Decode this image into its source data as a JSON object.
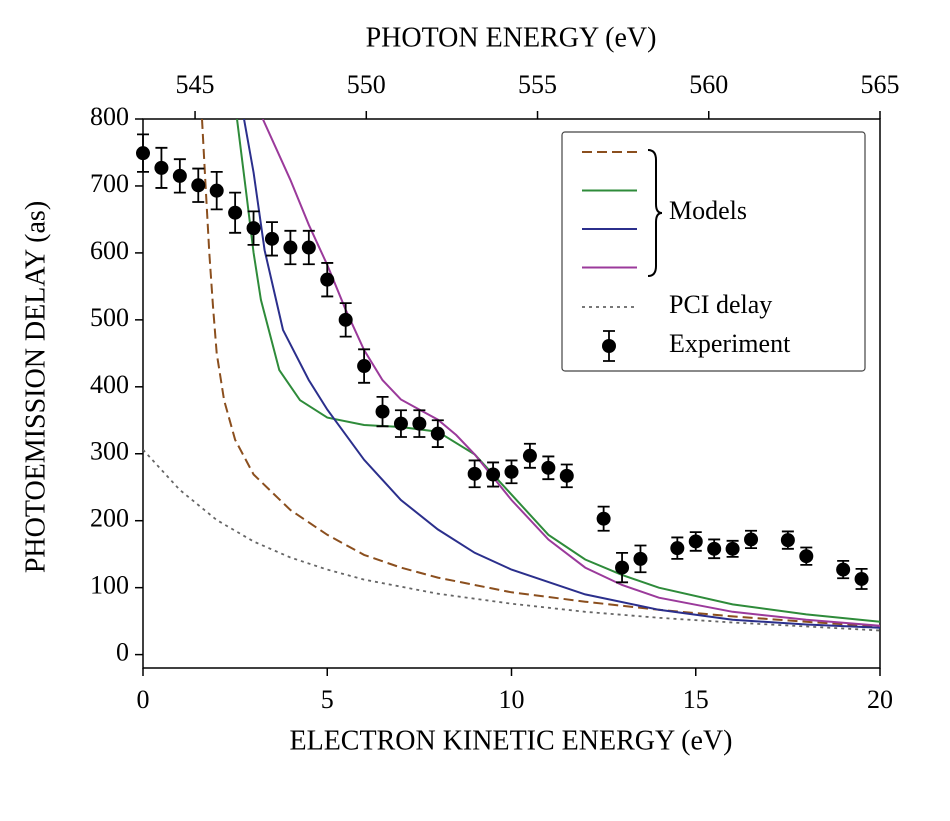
{
  "chart_data": {
    "type": "line",
    "xlabel": "ELECTRON KINETIC ENERGY (eV)",
    "ylabel": "PHOTOEMISSION DELAY (as)",
    "x2label": "PHOTON ENERGY (eV)",
    "xlim": [
      0,
      20
    ],
    "xticks": [
      0,
      5,
      10,
      15,
      20
    ],
    "ylim": [
      -20,
      800
    ],
    "yticks": [
      0,
      100,
      200,
      300,
      400,
      500,
      600,
      700,
      800
    ],
    "x2lim": [
      543.48,
      565
    ],
    "x2ticks": [
      545,
      550,
      555,
      560,
      565
    ],
    "legend": "upper right",
    "legend_group_label": "Models",
    "series": [
      {
        "color": "#8b4f1e",
        "dash": "dashed",
        "x": [
          1.6,
          1.7,
          1.8,
          1.9,
          2.0,
          2.2,
          2.5,
          3,
          4,
          5,
          6,
          7,
          8,
          10,
          12,
          14,
          16,
          18,
          20
        ],
        "values": [
          800,
          700,
          600,
          520,
          450,
          380,
          321,
          269,
          216,
          179,
          149,
          130,
          115,
          93,
          79,
          67,
          57,
          49,
          42
        ]
      },
      {
        "color": "#2e8b3a",
        "dash": "solid",
        "x": [
          2.55,
          2.8,
          3.0,
          3.2,
          3.7,
          4.26,
          5,
          6,
          7,
          8,
          9,
          10,
          11,
          12,
          13,
          14,
          16,
          18,
          20
        ],
        "values": [
          800,
          690,
          600,
          530,
          425,
          380,
          354,
          343,
          340,
          333,
          299,
          239,
          179,
          142,
          119,
          100,
          75,
          60,
          49
        ]
      },
      {
        "color": "#2b2f8c",
        "dash": "solid",
        "x": [
          2.74,
          3.0,
          3.3,
          3.8,
          4.5,
          5,
          6,
          7,
          8,
          9,
          10,
          12,
          14,
          16,
          18,
          20
        ],
        "values": [
          800,
          720,
          604,
          485,
          410,
          366,
          291,
          231,
          187,
          152,
          127,
          90,
          67,
          52,
          45,
          40
        ]
      },
      {
        "color": "#9b3a9b",
        "dash": "solid",
        "x": [
          3.25,
          4,
          4.5,
          5,
          5.5,
          6,
          6.5,
          7,
          7.5,
          8,
          8.5,
          9,
          10,
          11,
          12,
          13,
          14,
          16,
          18,
          20
        ],
        "values": [
          800,
          709,
          642,
          582,
          515,
          455,
          410,
          381,
          366,
          351,
          328,
          299,
          231,
          172,
          130,
          104,
          85,
          64,
          52,
          43
        ]
      },
      {
        "name": "PCI delay",
        "color": "#666666",
        "dash": "dotted",
        "x": [
          0,
          1,
          2,
          3,
          4,
          5,
          6,
          8,
          10,
          12,
          14,
          16,
          18,
          20
        ],
        "values": [
          306,
          246,
          201,
          169,
          145,
          127,
          112,
          91,
          76,
          64,
          55,
          48,
          42,
          36
        ]
      },
      {
        "name": "Experiment",
        "color": "#000000",
        "marker": "errorbar",
        "x": [
          0,
          0.5,
          1,
          1.5,
          2,
          2.5,
          3,
          3.5,
          4,
          4.5,
          5,
          5.5,
          6,
          6.5,
          7,
          7.5,
          8,
          9,
          9.5,
          10,
          10.5,
          11,
          11.5,
          12.5,
          13,
          13.5,
          14.5,
          15,
          15.5,
          16,
          16.5,
          17.5,
          18,
          19,
          19.5
        ],
        "values": [
          749,
          727,
          715,
          701,
          693,
          660,
          637,
          621,
          608,
          608,
          560,
          500,
          431,
          363,
          345,
          345,
          330,
          270,
          269,
          273,
          297,
          279,
          267,
          203,
          130,
          143,
          159,
          169,
          158,
          158,
          172,
          171,
          147,
          127,
          113
        ],
        "errors": [
          28,
          30,
          25,
          25,
          28,
          30,
          25,
          25,
          25,
          25,
          25,
          25,
          25,
          22,
          20,
          20,
          20,
          20,
          18,
          17,
          18,
          17,
          17,
          18,
          22,
          20,
          16,
          14,
          14,
          12,
          13,
          13,
          13,
          13,
          15
        ]
      }
    ]
  }
}
